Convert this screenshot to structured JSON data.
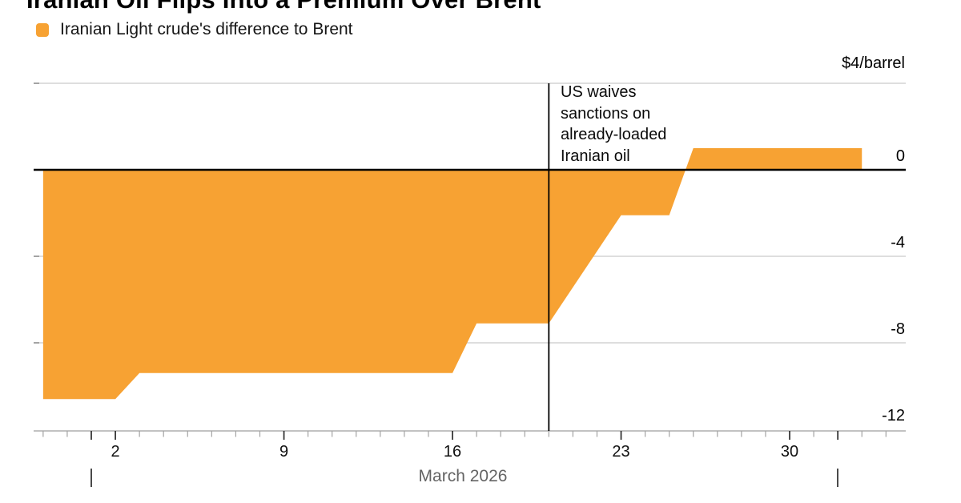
{
  "title": "Iranian Oil Flips Into a Premium Over Brent",
  "legend": {
    "label": "Iranian Light crude's difference to Brent"
  },
  "chart": {
    "unit_label": "$4/barrel",
    "y_axis": {
      "tick_labels": [
        "0",
        "-4",
        "-8",
        "-12"
      ],
      "tick_values": [
        0,
        -4,
        -8,
        -12
      ],
      "grid_values": [
        4,
        -4,
        -8
      ]
    },
    "x_axis": {
      "month_label": "March 2026",
      "labeled_days": [
        2,
        9,
        16,
        23,
        30
      ],
      "major_tick_days": [
        1,
        2,
        9,
        16,
        23,
        30,
        32
      ],
      "month_marker_days": [
        1,
        32
      ],
      "tick_day_range": [
        -1,
        34
      ]
    },
    "annotation": {
      "lines": [
        "US waives",
        "sanctions on",
        "already-loaded",
        "Iranian oil"
      ],
      "event_day": 20
    }
  },
  "chart_data": {
    "type": "area",
    "title": "Iranian Oil Flips Into a Premium Over Brent",
    "legend": "Iranian Light crude's difference to Brent",
    "xlabel": "March 2026",
    "ylabel": "$/barrel",
    "ylim": [
      -12,
      4
    ],
    "y_ticks": [
      0,
      -4,
      -8,
      -12
    ],
    "x_tick_days": [
      2,
      9,
      16,
      23,
      30
    ],
    "baseline": 0,
    "grid": "horizontal",
    "legend_position": "top-left",
    "series": [
      {
        "name": "Iranian Light crude's difference to Brent",
        "unit": "$/barrel",
        "points": [
          {
            "date": "2026-02-27",
            "day": -1,
            "value": -10.6
          },
          {
            "date": "2026-03-02",
            "day": 2,
            "value": -10.6
          },
          {
            "date": "2026-03-03",
            "day": 3,
            "value": -9.4
          },
          {
            "date": "2026-03-16",
            "day": 16,
            "value": -9.4
          },
          {
            "date": "2026-03-17",
            "day": 17,
            "value": -7.1
          },
          {
            "date": "2026-03-20",
            "day": 20,
            "value": -7.1
          },
          {
            "date": "2026-03-23",
            "day": 23,
            "value": -2.1
          },
          {
            "date": "2026-03-25",
            "day": 25,
            "value": -2.1
          },
          {
            "date": "2026-03-26",
            "day": 26,
            "value": 1.0
          },
          {
            "date": "2026-04-02",
            "day": 33,
            "value": 1.0
          }
        ]
      }
    ],
    "annotation": {
      "text": "US waives sanctions on already-loaded Iranian oil",
      "date": "2026-03-20"
    },
    "x_axis_note": "day = day-of-March 2026; day -1 = Feb 27, day 32 = Apr 1"
  },
  "colors": {
    "area": "#F7A233",
    "grid": "#C9C9C9",
    "axis_line": "#9E9E9E",
    "zero_line": "#000000",
    "event_line": "#000000",
    "tick_minor": "#A3A3A3",
    "tick_major": "#2B2B2B",
    "left_tick": "#8A8A8A",
    "text": "#000000",
    "muted_text": "#646464"
  }
}
